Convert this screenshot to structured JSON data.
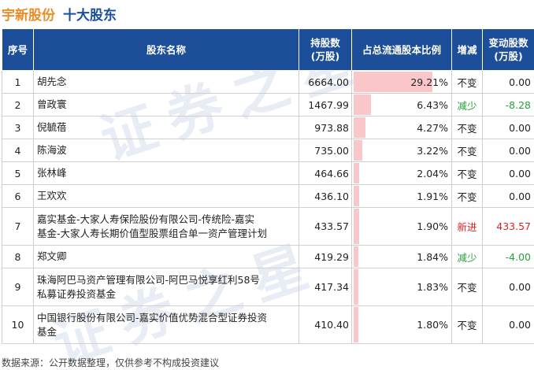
{
  "header": {
    "company": "宇新股份",
    "topic": "十大股东"
  },
  "columns": {
    "idx": "序号",
    "name": "股东名称",
    "shares_line1": "持股数",
    "shares_line2": "(万股)",
    "ratio": "占总流通股本比例",
    "change": "增减",
    "delta_line1": "变动股数",
    "delta_line2": "(万股)"
  },
  "chart_data": {
    "type": "table",
    "rows": [
      {
        "idx": "1",
        "name": "胡先念",
        "shares": "6664.00",
        "ratio": 29.21,
        "ratio_text": "29.21%",
        "change": "不变",
        "delta": "0.00"
      },
      {
        "idx": "2",
        "name": "曾政寰",
        "shares": "1467.99",
        "ratio": 6.43,
        "ratio_text": "6.43%",
        "change": "减少",
        "delta": "-8.28"
      },
      {
        "idx": "3",
        "name": "倪毓蓓",
        "shares": "973.88",
        "ratio": 4.27,
        "ratio_text": "4.27%",
        "change": "不变",
        "delta": "0.00"
      },
      {
        "idx": "4",
        "name": "陈海波",
        "shares": "735.00",
        "ratio": 3.22,
        "ratio_text": "3.22%",
        "change": "不变",
        "delta": "0.00"
      },
      {
        "idx": "5",
        "name": "张林峰",
        "shares": "464.66",
        "ratio": 2.04,
        "ratio_text": "2.04%",
        "change": "不变",
        "delta": "0.00"
      },
      {
        "idx": "6",
        "name": "王欢欢",
        "shares": "436.10",
        "ratio": 1.91,
        "ratio_text": "1.91%",
        "change": "不变",
        "delta": "0.00"
      },
      {
        "idx": "7",
        "name_lines": [
          "嘉实基金-大家人寿保险股份有限公司-传统险-嘉实",
          "基金-大家人寿长期价值型股票组合单一资产管理计划"
        ],
        "shares": "433.57",
        "ratio": 1.9,
        "ratio_text": "1.90%",
        "change": "新进",
        "delta": "433.57"
      },
      {
        "idx": "8",
        "name": "郑文卿",
        "shares": "419.29",
        "ratio": 1.84,
        "ratio_text": "1.84%",
        "change": "减少",
        "delta": "-4.00"
      },
      {
        "idx": "9",
        "name_lines": [
          "珠海阿巴马资产管理有限公司-阿巴马悦享红利58号",
          "私募证券投资基金"
        ],
        "shares": "417.34",
        "ratio": 1.83,
        "ratio_text": "1.83%",
        "change": "不变",
        "delta": "0.00"
      },
      {
        "idx": "10",
        "name_lines": [
          "中国银行股份有限公司-嘉实价值优势混合型证券投资",
          "基金"
        ],
        "shares": "410.40",
        "ratio": 1.8,
        "ratio_text": "1.80%",
        "change": "不变",
        "delta": "0.00"
      }
    ],
    "bar_color": "#f9c7c9"
  },
  "footer": {
    "source": "数据来源：公开数据整理，仅供参考不构成投资建议"
  },
  "colors": {
    "header_bg": "#1d4e9a",
    "title_company": "#f08a24",
    "title_topic": "#1a4f9c",
    "increase": "#e02020",
    "decrease": "#28a03a"
  }
}
